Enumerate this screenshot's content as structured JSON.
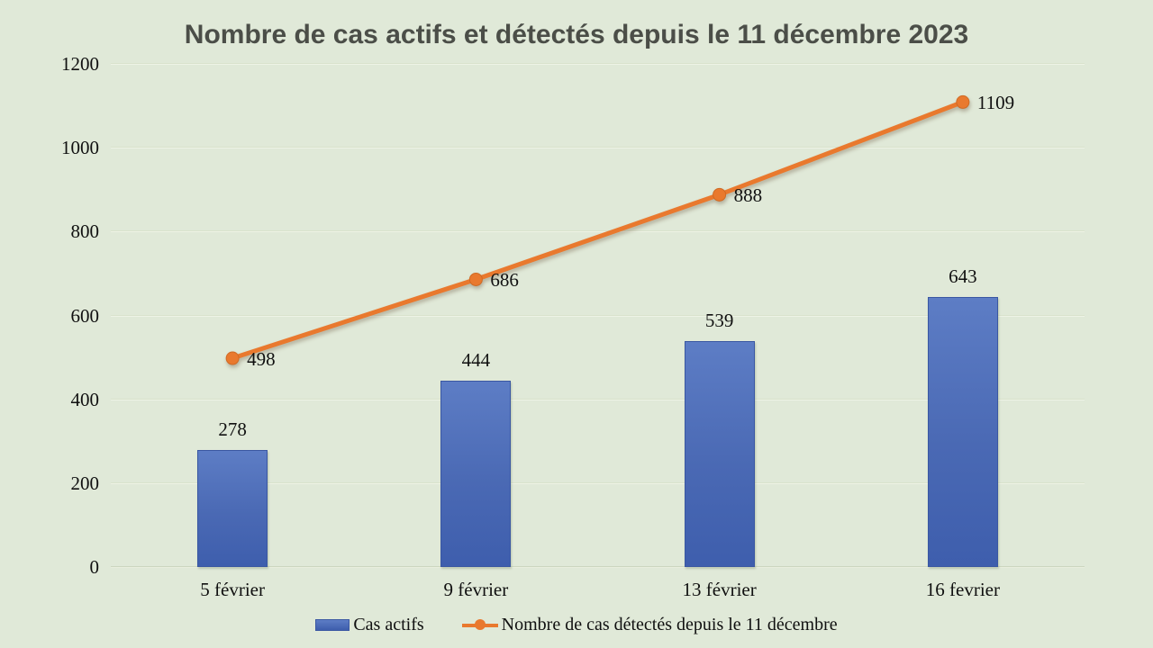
{
  "title": "Nombre de cas actifs et détectés depuis le 11 décembre 2023",
  "colors": {
    "background": "#e0e9d8",
    "bar_fill": "#4a69b4",
    "bar_fill_top": "#5d7dc5",
    "bar_fill_bottom": "#3e5ead",
    "line": "#e9792e",
    "title_text": "#4b4e48",
    "axis_text": "#101010"
  },
  "chart_data": {
    "type": "bar+line",
    "title": "Nombre de cas actifs et détectés depuis le 11 décembre 2023",
    "categories": [
      "5 février",
      "9 février",
      "13 février",
      "16 fevrier"
    ],
    "series": [
      {
        "name": "Cas actifs",
        "type": "bar",
        "color": "#4a69b4",
        "values": [
          278,
          444,
          539,
          643
        ]
      },
      {
        "name": "Nombre de cas détectés depuis le 11 décembre",
        "type": "line",
        "color": "#e9792e",
        "values": [
          498,
          686,
          888,
          1109
        ]
      }
    ],
    "xlabel": "",
    "ylabel": "",
    "ylim": [
      0,
      1200
    ],
    "yticks": [
      0,
      200,
      400,
      600,
      800,
      1000,
      1200
    ],
    "grid": true,
    "data_labels": true,
    "legend_position": "bottom"
  },
  "legend": {
    "items": [
      {
        "label": "Cas actifs",
        "marker": "bar-swatch"
      },
      {
        "label": "Nombre de cas détectés depuis le 11 décembre",
        "marker": "line-marker"
      }
    ]
  }
}
